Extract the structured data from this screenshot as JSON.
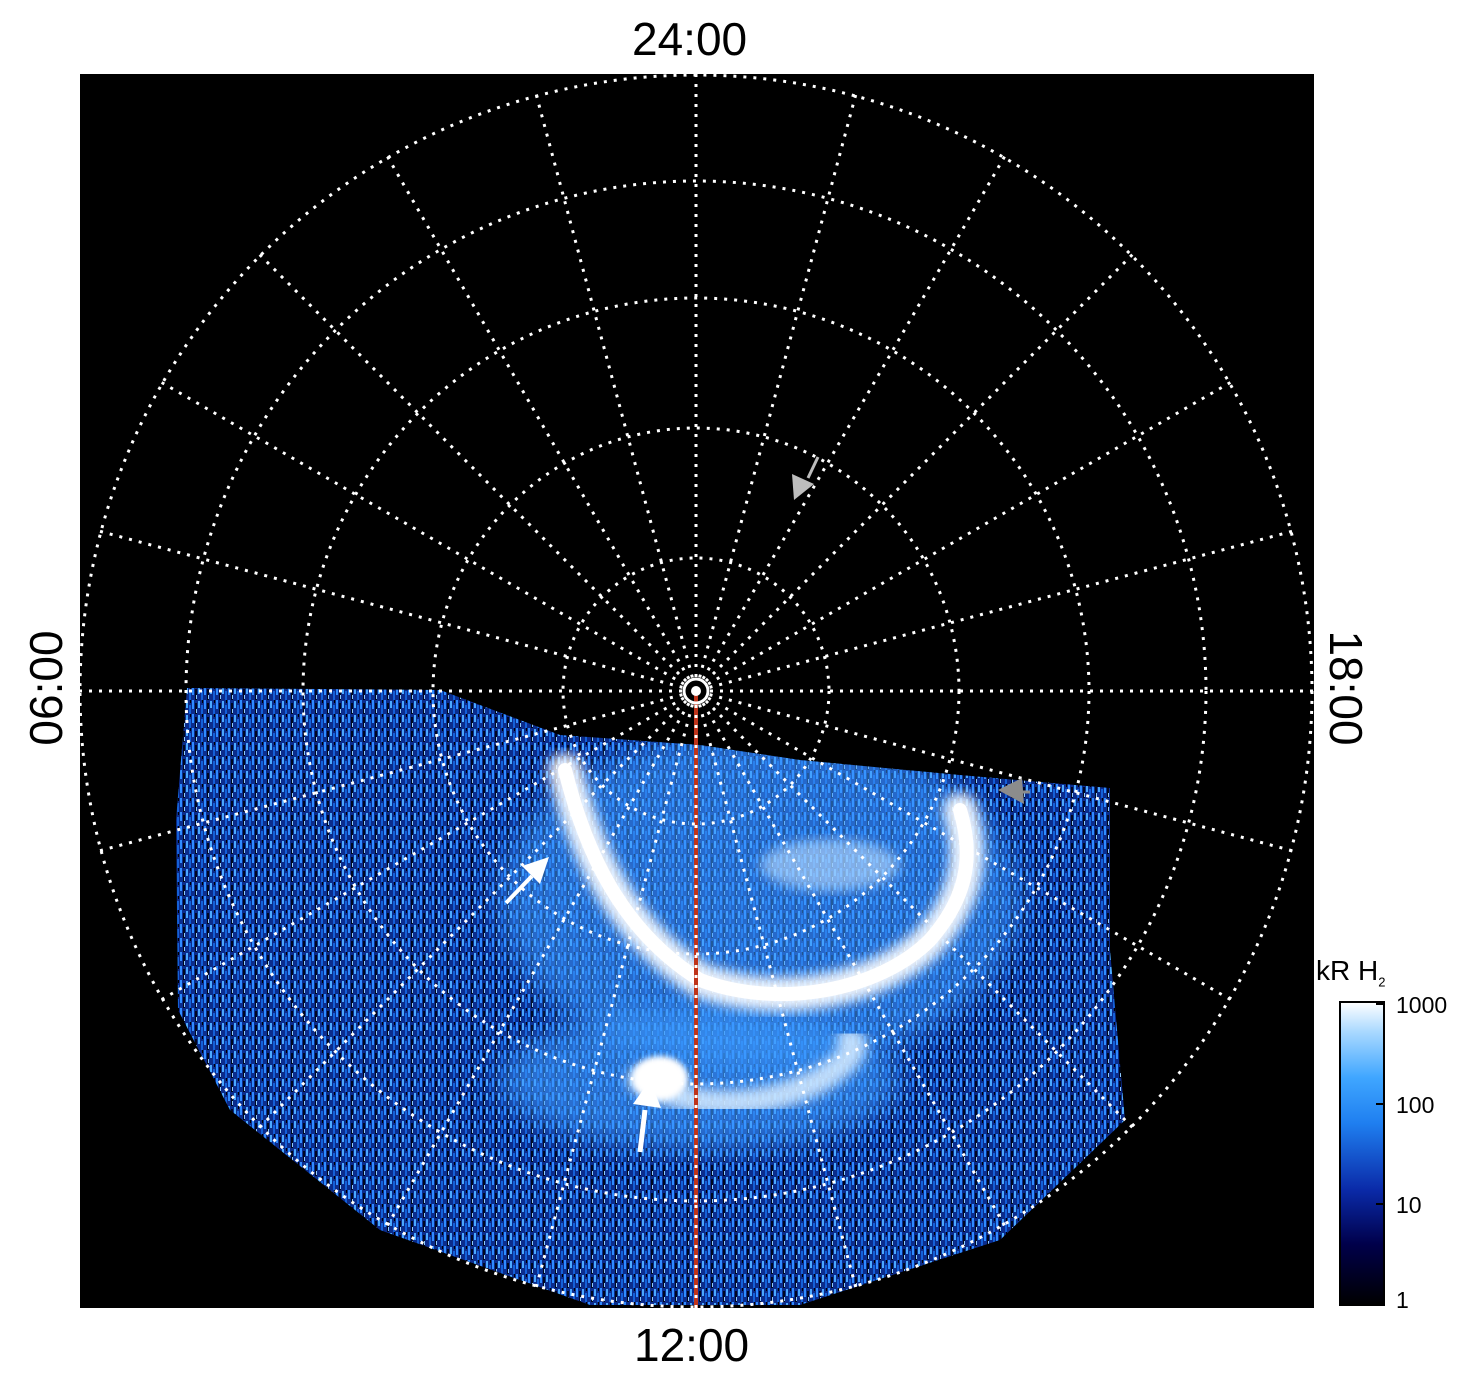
{
  "local_time_labels": {
    "top": "24:00",
    "bottom": "12:00",
    "left": "06:00",
    "right": "18:00"
  },
  "colorbar": {
    "title": "kR H",
    "title_subscript": "2",
    "ticks": [
      "1000",
      "100",
      "10",
      "1"
    ],
    "scale": "log",
    "range": [
      1,
      1000
    ],
    "colors": [
      "#000000",
      "#00004a",
      "#0a2aa8",
      "#1f7ff0",
      "#3fa6ff",
      "#a8d8ff",
      "#ffffff"
    ]
  },
  "annotations": {
    "white_arrows": 2,
    "grey_arrows": 2,
    "meridian_line_color": "#c0341a"
  },
  "colors": {
    "background": "#000000",
    "grid": "#ffffff",
    "aurora_bright": "#ffffff",
    "aurora_mid": "#2a8cff",
    "aurora_dark": "#0a2f8a"
  }
}
